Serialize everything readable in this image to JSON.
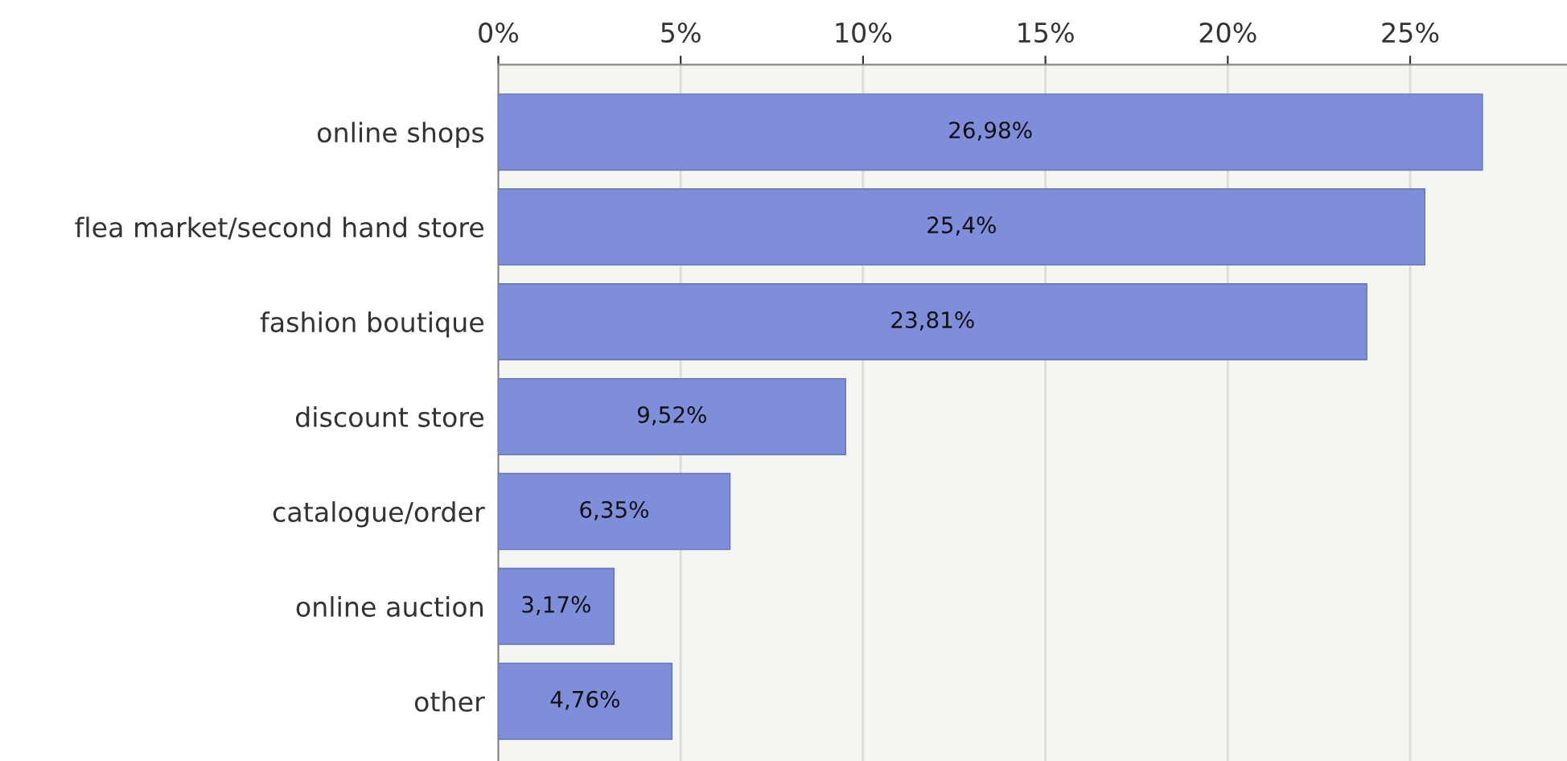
{
  "chart_data": {
    "type": "bar",
    "orientation": "horizontal",
    "categories": [
      "online shops",
      "flea market/second hand store",
      "fashion boutique",
      "discount store",
      "catalogue/order",
      "online auction",
      "other"
    ],
    "values": [
      26.98,
      25.4,
      23.81,
      9.52,
      6.35,
      3.17,
      4.76
    ],
    "value_labels": [
      "26,98%",
      "25,4%",
      "23,81%",
      "9,52%",
      "6,35%",
      "3,17%",
      "4,76%"
    ],
    "color": "#7f8edb",
    "xlim": [
      0,
      29.3
    ],
    "xticks": [
      {
        "value": 0,
        "label": "0%"
      },
      {
        "value": 5,
        "label": "5%"
      },
      {
        "value": 10,
        "label": "10%"
      },
      {
        "value": 15,
        "label": "15%"
      },
      {
        "value": 20,
        "label": "20%"
      },
      {
        "value": 25,
        "label": "25%"
      }
    ],
    "grid": "x"
  }
}
